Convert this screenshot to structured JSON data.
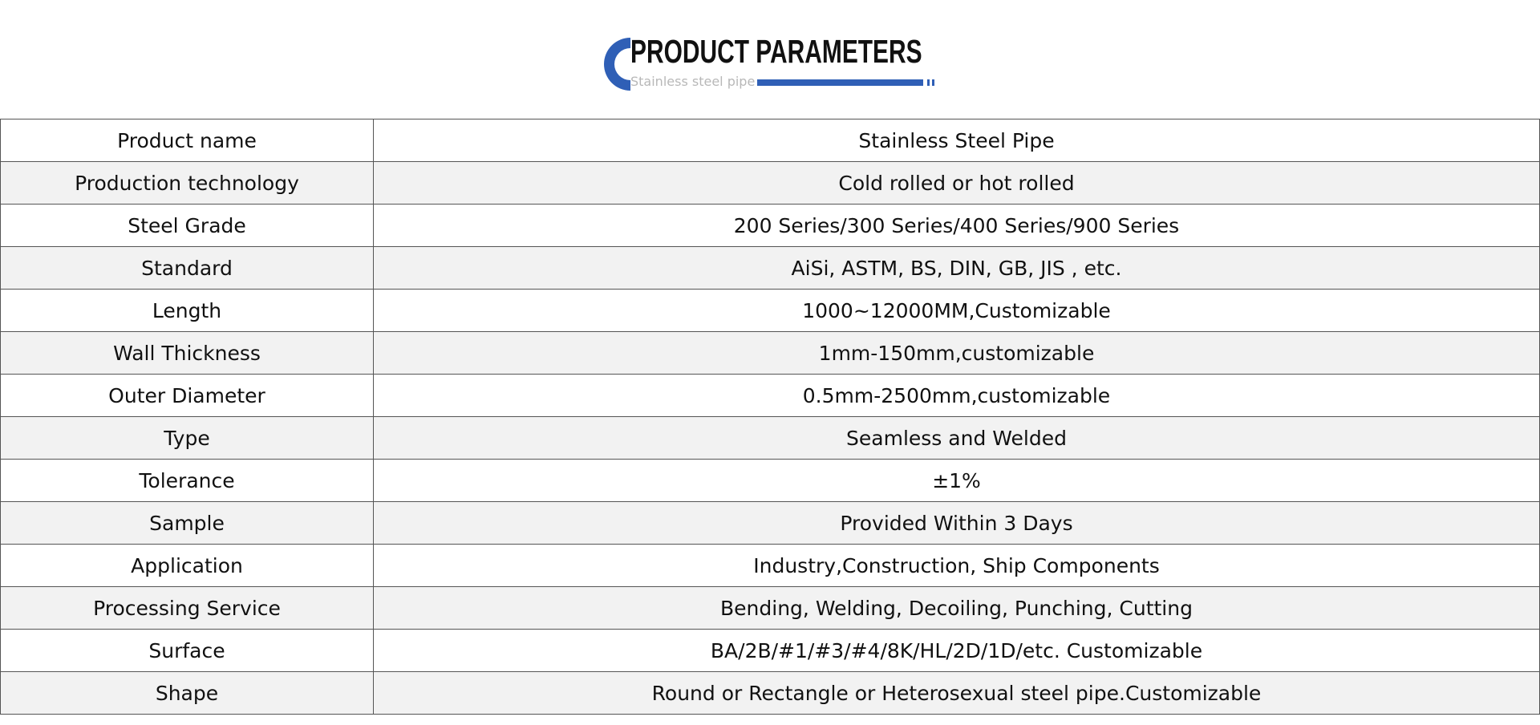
{
  "header": {
    "title": "PRODUCT PARAMETERS",
    "subtitle": "Stainless steel pipe",
    "accent_color": "#2f5fb6",
    "logo_icon": "c-shape-icon"
  },
  "table": {
    "rows": [
      {
        "label": "Product name",
        "value": "Stainless Steel Pipe"
      },
      {
        "label": "Production technology",
        "value": "Cold rolled or hot rolled"
      },
      {
        "label": "Steel Grade",
        "value": "200 Series/300 Series/400 Series/900 Series"
      },
      {
        "label": "Standard",
        "value": "AiSi, ASTM, BS, DIN, GB, JIS , etc."
      },
      {
        "label": "Length",
        "value": "1000~12000MM,Customizable"
      },
      {
        "label": "Wall Thickness",
        "value": "1mm-150mm,customizable"
      },
      {
        "label": "Outer Diameter",
        "value": "0.5mm-2500mm,customizable"
      },
      {
        "label": "Type",
        "value": "Seamless and Welded"
      },
      {
        "label": "Tolerance",
        "value": "±1%"
      },
      {
        "label": "Sample",
        "value": "Provided Within 3 Days"
      },
      {
        "label": "Application",
        "value": "Industry,Construction, Ship Components"
      },
      {
        "label": "Processing Service",
        "value": "Bending, Welding, Decoiling, Punching, Cutting"
      },
      {
        "label": "Surface",
        "value": "BA/2B/#1/#3/#4/8K/HL/2D/1D/etc. Customizable"
      },
      {
        "label": "Shape",
        "value": "Round or Rectangle or Heterosexual steel pipe.Customizable"
      }
    ]
  }
}
